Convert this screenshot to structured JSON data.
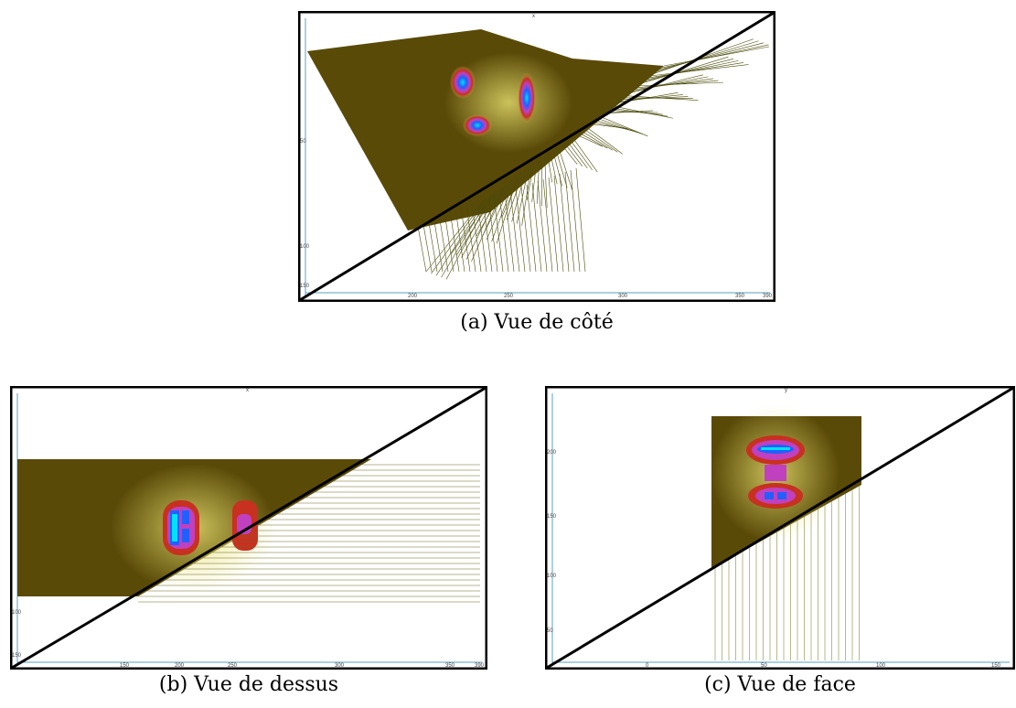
{
  "figure": {
    "panels": [
      {
        "id": "a",
        "caption": "(a) Vue de côté",
        "axis_top": "x",
        "bottom_ticks": [
          "200",
          "250",
          "300",
          "350",
          "390"
        ],
        "left_ticks": [
          "50",
          "100",
          "150"
        ]
      },
      {
        "id": "b",
        "caption": "(b) Vue de dessus",
        "axis_top": "x",
        "bottom_ticks": [
          "150",
          "200",
          "250",
          "300",
          "350",
          "390"
        ],
        "left_ticks": [
          "100",
          "150"
        ]
      },
      {
        "id": "c",
        "caption": "(c) Vue de face",
        "axis_top": "y",
        "bottom_ticks": [
          "0",
          "50",
          "100",
          "150"
        ],
        "left_ticks": [
          "200",
          "150",
          "100",
          "50"
        ]
      }
    ],
    "colors": {
      "field_background": "#5a4a08",
      "ray_line": "#4a4a08",
      "hot_outer": "#c83020",
      "hot_mid": "#c040c0",
      "hot_core": "#2060ff",
      "hot_center": "#00e0ff",
      "frame_axis": "#5aa0c0"
    }
  }
}
